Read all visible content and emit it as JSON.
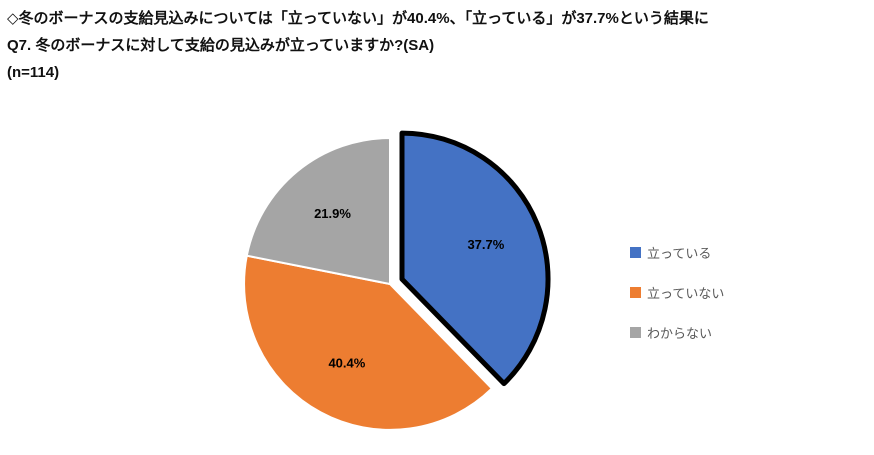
{
  "header": {
    "line1": "◇冬のボーナスの支給見込みについては「立っていない」が40.4%、「立っている」が37.7%という結果に",
    "line2": "Q7. 冬のボーナスに対して支給の見込みが立っていますか?(SA)",
    "line3": "(n=114)"
  },
  "chart_data": {
    "type": "pie",
    "title": "",
    "categories": [
      "立っている",
      "立っていない",
      "わからない"
    ],
    "values": [
      37.7,
      40.4,
      21.9
    ],
    "data_labels": [
      "37.7%",
      "40.4%",
      "21.9%"
    ],
    "colors": [
      "#4472C4",
      "#ED7D31",
      "#A5A5A5"
    ],
    "exploded_index": 0,
    "exploded_outline": "#000000",
    "start_angle_deg": 0,
    "direction": "clockwise",
    "legend_position": "right",
    "sample_size": "(n=114)"
  },
  "legend": {
    "items": [
      {
        "label": "立っている",
        "color": "#4472C4"
      },
      {
        "label": "立っていない",
        "color": "#ED7D31"
      },
      {
        "label": "わからない",
        "color": "#A5A5A5"
      }
    ]
  }
}
